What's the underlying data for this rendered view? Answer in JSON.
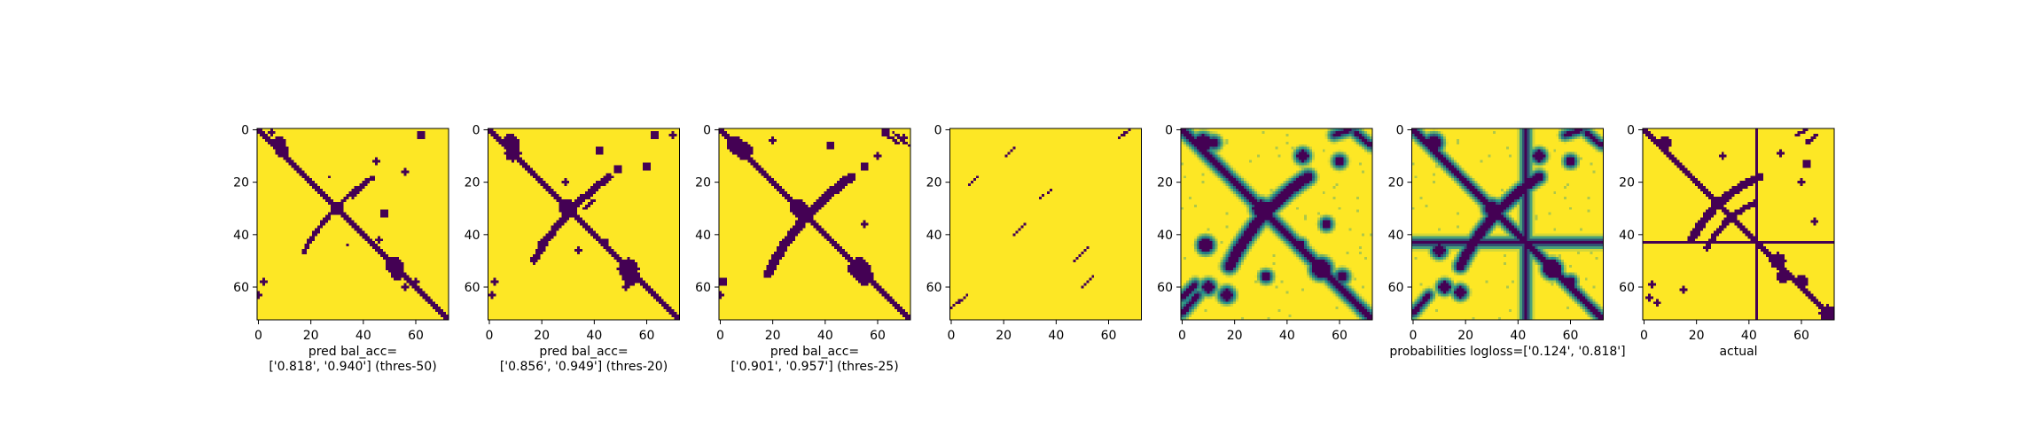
{
  "colors": {
    "background": "#ffffff",
    "viridis_low": "#440154",
    "viridis_mid": "#21918c",
    "viridis_high": "#fde725",
    "axis": "#000000"
  },
  "chart_data": [
    {
      "type": "heatmap",
      "mode": "binary",
      "caption_lines": [
        "pred bal_acc=",
        "['0.818', '0.940'] (thres-50)"
      ],
      "xlim": [
        0,
        73
      ],
      "ylim": [
        0,
        73
      ],
      "xticks": [
        0,
        20,
        40,
        60
      ],
      "yticks": [
        0,
        20,
        40,
        60
      ],
      "colormap": "viridis",
      "features": {
        "main_diagonal": true,
        "diagonal_width": 1.8,
        "cross_arcs": [
          {
            "from": [
              17,
              47
            ],
            "to": [
              44,
              18
            ],
            "width": 0.9,
            "bulge": -5
          }
        ],
        "blobs": [
          [
            5,
            1,
            1.2
          ],
          [
            8,
            5,
            2.8
          ],
          [
            9,
            8,
            2.8
          ],
          [
            30,
            30,
            2.5
          ],
          [
            52,
            52,
            3.5
          ],
          [
            53,
            55,
            2.8
          ],
          [
            48,
            32,
            1.6
          ],
          [
            45,
            12,
            1.3
          ],
          [
            62,
            2,
            1.5
          ],
          [
            56,
            60,
            1.2
          ],
          [
            60,
            58,
            1.0
          ],
          [
            2,
            58,
            1.2
          ],
          [
            0,
            63,
            1.2
          ],
          [
            27,
            18,
            0.9
          ],
          [
            34,
            44,
            0.9
          ],
          [
            46,
            42,
            1.0
          ],
          [
            56,
            16,
            1.1
          ]
        ],
        "short_lines": [
          {
            "from": [
              40,
              22
            ],
            "to": [
              36,
              26
            ],
            "width": 0.6
          }
        ]
      }
    },
    {
      "type": "heatmap",
      "mode": "binary",
      "caption_lines": [
        "pred bal_acc=",
        "['0.856', '0.949'] (thres-20)"
      ],
      "xlim": [
        0,
        73
      ],
      "ylim": [
        0,
        73
      ],
      "xticks": [
        0,
        20,
        40,
        60
      ],
      "yticks": [
        0,
        20,
        40,
        60
      ],
      "colormap": "viridis",
      "features": {
        "main_diagonal": true,
        "diagonal_width": 2.2,
        "cross_arcs": [
          {
            "from": [
              17,
              50
            ],
            "to": [
              46,
              18
            ],
            "width": 1.4,
            "bulge": -5
          }
        ],
        "blobs": [
          [
            8,
            5,
            3.2
          ],
          [
            9,
            9,
            3.0
          ],
          [
            30,
            30,
            3.2
          ],
          [
            53,
            53,
            4.0
          ],
          [
            54,
            56,
            3.2
          ],
          [
            44,
            43,
            1.5
          ],
          [
            42,
            8,
            1.8
          ],
          [
            49,
            15,
            1.8
          ],
          [
            63,
            2,
            1.6
          ],
          [
            60,
            14,
            1.6
          ],
          [
            70,
            2,
            1.2
          ],
          [
            2,
            58,
            1.4
          ],
          [
            1,
            63,
            1.4
          ],
          [
            29,
            20,
            1.2
          ],
          [
            34,
            46,
            1.2
          ],
          [
            52,
            60,
            1.4
          ],
          [
            20,
            43,
            1.0
          ]
        ],
        "short_lines": [
          {
            "from": [
              40,
              27
            ],
            "to": [
              36,
              30
            ],
            "width": 0.7
          }
        ]
      }
    },
    {
      "type": "heatmap",
      "mode": "binary",
      "caption_lines": [
        "pred bal_acc=",
        "['0.901', '0.957'] (thres-25)"
      ],
      "xlim": [
        0,
        73
      ],
      "ylim": [
        0,
        73
      ],
      "xticks": [
        0,
        20,
        40,
        60
      ],
      "yticks": [
        0,
        20,
        40,
        60
      ],
      "colormap": "viridis",
      "features": {
        "main_diagonal": true,
        "diagonal_width": 2.6,
        "cross_arcs": [
          {
            "from": [
              18,
              55
            ],
            "to": [
              50,
              18
            ],
            "width": 1.8,
            "bulge": -6
          }
        ],
        "blobs": [
          [
            6,
            6,
            3.5
          ],
          [
            9,
            8,
            3.2
          ],
          [
            30,
            30,
            3.2
          ],
          [
            53,
            53,
            4.2
          ],
          [
            55,
            56,
            3.5
          ],
          [
            42,
            6,
            1.8
          ],
          [
            55,
            14,
            1.6
          ],
          [
            63,
            1,
            1.6
          ],
          [
            60,
            10,
            1.3
          ],
          [
            55,
            36,
            1.2
          ],
          [
            1,
            58,
            1.6
          ],
          [
            0,
            63,
            1.4
          ],
          [
            20,
            4,
            1.2
          ],
          [
            70,
            3,
            1.0
          ]
        ],
        "short_lines": [
          {
            "from": [
              62,
              1
            ],
            "to": [
              68,
              5
            ],
            "width": 0.6
          },
          {
            "from": [
              66,
              1
            ],
            "to": [
              72,
              6
            ],
            "width": 0.6
          }
        ]
      }
    },
    {
      "type": "heatmap",
      "mode": "binary",
      "caption_lines": [],
      "xlim": [
        0,
        73
      ],
      "ylim": [
        0,
        73
      ],
      "xticks": [
        0,
        20,
        40,
        60
      ],
      "yticks": [
        0,
        20,
        40,
        60
      ],
      "colormap": "viridis",
      "features": {
        "main_diagonal": false,
        "cross_arcs": [],
        "blobs": [],
        "short_lines": [
          {
            "from": [
              0,
              68
            ],
            "to": [
              6,
              63
            ],
            "width": 0.4
          },
          {
            "from": [
              21,
              10
            ],
            "to": [
              24,
              7
            ],
            "width": 0.4
          },
          {
            "from": [
              7,
              21
            ],
            "to": [
              10,
              18
            ],
            "width": 0.4
          },
          {
            "from": [
              34,
              26
            ],
            "to": [
              38,
              23
            ],
            "width": 0.4
          },
          {
            "from": [
              24,
              40
            ],
            "to": [
              28,
              36
            ],
            "width": 0.4
          },
          {
            "from": [
              64,
              3
            ],
            "to": [
              68,
              0
            ],
            "width": 0.4
          },
          {
            "from": [
              47,
              50
            ],
            "to": [
              52,
              45
            ],
            "width": 0.4
          },
          {
            "from": [
              50,
              60
            ],
            "to": [
              54,
              56
            ],
            "width": 0.4
          }
        ]
      }
    },
    {
      "type": "heatmap",
      "mode": "continuous",
      "caption_lines": [],
      "xlim": [
        0,
        73
      ],
      "ylim": [
        0,
        73
      ],
      "xticks": [
        0,
        20,
        40,
        60
      ],
      "yticks": [
        0,
        20,
        40,
        60
      ],
      "colormap": "viridis",
      "features": {
        "main_diagonal": true,
        "diagonal_width": 2.4,
        "cross_arcs": [
          {
            "from": [
              18,
              52
            ],
            "to": [
              48,
              18
            ],
            "width": 1.8,
            "bulge": -6
          }
        ],
        "blobs": [
          [
            8,
            5,
            3
          ],
          [
            30,
            30,
            3
          ],
          [
            53,
            53,
            3.5
          ],
          [
            12,
            5,
            1.8
          ],
          [
            9,
            44,
            2.5
          ],
          [
            10,
            60,
            2
          ],
          [
            17,
            63,
            2.2
          ],
          [
            46,
            10,
            2
          ],
          [
            55,
            36,
            1.5
          ],
          [
            45,
            44,
            1.5
          ],
          [
            61,
            56,
            1.8
          ],
          [
            60,
            12,
            1.6
          ],
          [
            32,
            56,
            1.5
          ]
        ],
        "short_lines": [
          {
            "from": [
              58,
              2
            ],
            "to": [
              64,
              0
            ],
            "width": 0.8
          },
          {
            "from": [
              66,
              1
            ],
            "to": [
              72,
              6
            ],
            "width": 0.8
          },
          {
            "from": [
              0,
              70
            ],
            "to": [
              6,
              63
            ],
            "width": 0.9
          },
          {
            "from": [
              0,
              64
            ],
            "to": [
              5,
              59
            ],
            "width": 0.9
          }
        ],
        "halo": 2.6
      }
    },
    {
      "type": "heatmap",
      "mode": "continuous",
      "caption_lines": [
        "probabilities logloss=['0.124', '0.818']"
      ],
      "xlim": [
        0,
        73
      ],
      "ylim": [
        0,
        73
      ],
      "xticks": [
        0,
        20,
        40,
        60
      ],
      "yticks": [
        0,
        20,
        40,
        60
      ],
      "colormap": "viridis",
      "features": {
        "main_diagonal": true,
        "diagonal_width": 2.0,
        "cross_arcs": [
          {
            "from": [
              18,
              52
            ],
            "to": [
              48,
              18
            ],
            "width": 1.6,
            "bulge": -6
          }
        ],
        "blobs": [
          [
            8,
            5,
            2.8
          ],
          [
            30,
            30,
            2.8
          ],
          [
            53,
            53,
            3.2
          ],
          [
            10,
            46,
            2.2
          ],
          [
            12,
            60,
            2
          ],
          [
            48,
            10,
            2
          ],
          [
            60,
            12,
            1.6
          ],
          [
            60,
            58,
            1.6
          ],
          [
            18,
            62,
            2
          ]
        ],
        "short_lines": [
          {
            "from": [
              58,
              2
            ],
            "to": [
              64,
              0
            ],
            "width": 0.8
          },
          {
            "from": [
              66,
              1
            ],
            "to": [
              72,
              6
            ],
            "width": 0.8
          },
          {
            "from": [
              0,
              70
            ],
            "to": [
              6,
              63
            ],
            "width": 0.9
          }
        ],
        "stripe": {
          "row": 43,
          "col": 43,
          "width": 1.8
        },
        "halo": 2.4
      }
    },
    {
      "type": "heatmap",
      "mode": "binary",
      "caption_lines": [
        "actual"
      ],
      "xlim": [
        0,
        73
      ],
      "ylim": [
        0,
        73
      ],
      "xticks": [
        0,
        20,
        40,
        60
      ],
      "yticks": [
        0,
        20,
        40,
        60
      ],
      "colormap": "viridis",
      "features": {
        "main_diagonal": true,
        "diagonal_width": 2.0,
        "cross_arcs": [
          {
            "from": [
              18,
              42
            ],
            "to": [
              44,
              18
            ],
            "width": 1.6,
            "bulge": -6
          },
          {
            "from": [
              24,
              45
            ],
            "to": [
              42,
              28
            ],
            "width": 1.2,
            "bulge": -4
          }
        ],
        "blobs": [
          [
            8,
            5,
            2.5
          ],
          [
            28,
            28,
            2.5
          ],
          [
            51,
            50,
            3.0
          ],
          [
            53,
            56,
            2.8
          ],
          [
            60,
            58,
            2.5
          ],
          [
            70,
            70,
            3.0
          ],
          [
            65,
            35,
            1.4
          ],
          [
            15,
            61,
            1.4
          ],
          [
            2,
            64,
            1.3
          ],
          [
            30,
            10,
            1.2
          ],
          [
            52,
            9,
            1.0
          ],
          [
            62,
            13,
            1.5
          ],
          [
            60,
            20,
            1.0
          ],
          [
            5,
            66,
            1.0
          ],
          [
            3,
            59,
            1.2
          ]
        ],
        "short_lines": [
          {
            "from": [
              58,
              2
            ],
            "to": [
              62,
              0
            ],
            "width": 0.8
          },
          {
            "from": [
              62,
              5
            ],
            "to": [
              66,
              2
            ],
            "width": 0.8
          }
        ],
        "stripe": {
          "row": 43,
          "col": 43,
          "width": 1.8
        }
      }
    }
  ]
}
